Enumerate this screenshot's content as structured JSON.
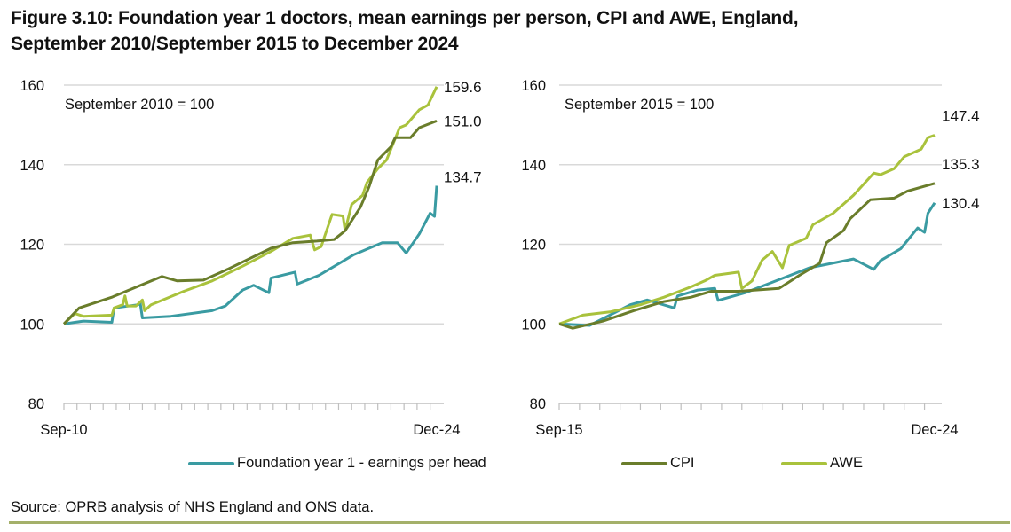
{
  "title_line1": "Figure 3.10: Foundation year 1 doctors, mean earnings per person, CPI and AWE, England,",
  "title_line2": "September 2010/September 2015 to December 2024",
  "source": "Source: OPRB analysis of NHS England and ONS data.",
  "colors": {
    "fy1": "#3a9ba2",
    "cpi": "#6a7d2b",
    "awe": "#a9c23c",
    "grid": "#d9d9d9",
    "rule": "#a4b06a"
  },
  "legend": [
    {
      "key": "fy1",
      "label": "Foundation year 1 - earnings per head"
    },
    {
      "key": "cpi",
      "label": "CPI"
    },
    {
      "key": "awe",
      "label": "AWE"
    }
  ],
  "chart_data": [
    {
      "type": "line",
      "annotation": "September 2010 = 100",
      "x_start": "2010-09",
      "x_end": "2024-12",
      "x_tick_labels": [
        "Sep-10",
        "Dec-24"
      ],
      "ylim": [
        80,
        160
      ],
      "yticks": [
        80,
        100,
        120,
        140,
        160
      ],
      "grid": true,
      "end_labels": {
        "awe": "159.6",
        "cpi": "151.0",
        "fy1": "134.7"
      },
      "series": {
        "cpi": [
          [
            "2010-09",
            100
          ],
          [
            "2011-04",
            104
          ],
          [
            "2012-07",
            106.7
          ],
          [
            "2014-06",
            111.9
          ],
          [
            "2015-01",
            110.8
          ],
          [
            "2016-01",
            111
          ],
          [
            "2016-12",
            113.7
          ],
          [
            "2018-08",
            119
          ],
          [
            "2019-06",
            120.4
          ],
          [
            "2020-05",
            120.8
          ],
          [
            "2021-01",
            121.2
          ],
          [
            "2021-06",
            123.4
          ],
          [
            "2022-01",
            129.3
          ],
          [
            "2022-05",
            134.5
          ],
          [
            "2022-09",
            141.2
          ],
          [
            "2023-03",
            144.5
          ],
          [
            "2023-05",
            146.8
          ],
          [
            "2023-12",
            146.8
          ],
          [
            "2024-04",
            149.3
          ],
          [
            "2024-12",
            151.0
          ]
        ],
        "awe": [
          [
            "2010-09",
            100
          ],
          [
            "2011-02",
            102.6
          ],
          [
            "2011-06",
            101.9
          ],
          [
            "2012-07",
            102.2
          ],
          [
            "2012-08",
            104
          ],
          [
            "2012-12",
            104.8
          ],
          [
            "2013-01",
            107
          ],
          [
            "2013-02",
            104.5
          ],
          [
            "2013-06",
            104.5
          ],
          [
            "2013-09",
            106
          ],
          [
            "2013-10",
            103.3
          ],
          [
            "2014-01",
            104.8
          ],
          [
            "2015-04",
            108.2
          ],
          [
            "2016-05",
            110.8
          ],
          [
            "2017-07",
            114.5
          ],
          [
            "2018-08",
            118.2
          ],
          [
            "2019-06",
            121.5
          ],
          [
            "2020-02",
            122.3
          ],
          [
            "2020-04",
            118.6
          ],
          [
            "2020-07",
            119.4
          ],
          [
            "2020-12",
            127.5
          ],
          [
            "2021-05",
            127.1
          ],
          [
            "2021-06",
            123.4
          ],
          [
            "2021-09",
            130
          ],
          [
            "2022-02",
            132.3
          ],
          [
            "2022-04",
            135.5
          ],
          [
            "2022-09",
            139
          ],
          [
            "2023-01",
            141.2
          ],
          [
            "2023-07",
            149.3
          ],
          [
            "2023-10",
            150
          ],
          [
            "2024-04",
            153.8
          ],
          [
            "2024-08",
            155
          ],
          [
            "2024-12",
            159.6
          ]
        ],
        "fy1": [
          [
            "2010-09",
            100
          ],
          [
            "2011-02",
            100.4
          ],
          [
            "2011-06",
            100.7
          ],
          [
            "2012-07",
            100.4
          ],
          [
            "2012-08",
            104
          ],
          [
            "2013-07",
            104.8
          ],
          [
            "2013-08",
            105.2
          ],
          [
            "2013-09",
            101.5
          ],
          [
            "2014-10",
            101.9
          ],
          [
            "2016-05",
            103.3
          ],
          [
            "2016-11",
            104.5
          ],
          [
            "2017-07",
            108.5
          ],
          [
            "2017-12",
            109.7
          ],
          [
            "2018-07",
            107.8
          ],
          [
            "2018-08",
            111.5
          ],
          [
            "2019-07",
            113
          ],
          [
            "2019-08",
            110
          ],
          [
            "2020-06",
            112.2
          ],
          [
            "2021-10",
            117.4
          ],
          [
            "2022-11",
            120.4
          ],
          [
            "2023-06",
            120.4
          ],
          [
            "2023-10",
            117.8
          ],
          [
            "2024-04",
            122.6
          ],
          [
            "2024-09",
            127.8
          ],
          [
            "2024-11",
            127
          ],
          [
            "2024-12",
            134.7
          ]
        ]
      }
    },
    {
      "type": "line",
      "annotation": "September 2015 = 100",
      "x_start": "2015-09",
      "x_end": "2024-12",
      "x_tick_labels": [
        "Sep-15",
        "Dec-24"
      ],
      "ylim": [
        80,
        160
      ],
      "yticks": [
        80,
        100,
        120,
        140,
        160
      ],
      "grid": true,
      "end_labels": {
        "awe": "147.4",
        "cpi": "135.3",
        "fy1": "130.4"
      },
      "series": {
        "awe": [
          [
            "2015-09",
            100
          ],
          [
            "2016-04",
            102.2
          ],
          [
            "2016-12",
            103
          ],
          [
            "2017-09",
            104.8
          ],
          [
            "2018-04",
            106.7
          ],
          [
            "2018-12",
            109.3
          ],
          [
            "2019-04",
            110.8
          ],
          [
            "2019-07",
            112.2
          ],
          [
            "2020-02",
            113
          ],
          [
            "2020-03",
            108.9
          ],
          [
            "2020-06",
            110.8
          ],
          [
            "2020-09",
            116
          ],
          [
            "2020-12",
            118.2
          ],
          [
            "2021-03",
            114.1
          ],
          [
            "2021-05",
            119.7
          ],
          [
            "2021-10",
            121.5
          ],
          [
            "2021-12",
            124.9
          ],
          [
            "2022-06",
            127.8
          ],
          [
            "2022-12",
            132.3
          ],
          [
            "2023-06",
            137.9
          ],
          [
            "2023-08",
            137.5
          ],
          [
            "2023-12",
            139
          ],
          [
            "2024-03",
            142
          ],
          [
            "2024-08",
            143.9
          ],
          [
            "2024-10",
            146.8
          ],
          [
            "2024-12",
            147.4
          ]
        ],
        "cpi": [
          [
            "2015-09",
            100
          ],
          [
            "2016-01",
            98.9
          ],
          [
            "2016-10",
            100.7
          ],
          [
            "2017-07",
            103.3
          ],
          [
            "2018-04",
            105.6
          ],
          [
            "2018-12",
            106.7
          ],
          [
            "2019-06",
            108.2
          ],
          [
            "2020-02",
            108.2
          ],
          [
            "2021-02",
            108.9
          ],
          [
            "2021-08",
            112.2
          ],
          [
            "2022-02",
            115.2
          ],
          [
            "2022-04",
            120.4
          ],
          [
            "2022-09",
            123.4
          ],
          [
            "2022-11",
            126.4
          ],
          [
            "2023-05",
            131.2
          ],
          [
            "2023-12",
            131.6
          ],
          [
            "2024-04",
            133.4
          ],
          [
            "2024-12",
            135.3
          ]
        ],
        "fy1": [
          [
            "2015-09",
            100
          ],
          [
            "2016-06",
            99.6
          ],
          [
            "2017-06",
            104.8
          ],
          [
            "2017-11",
            106
          ],
          [
            "2018-07",
            104
          ],
          [
            "2018-08",
            107
          ],
          [
            "2019-02",
            108.5
          ],
          [
            "2019-07",
            108.9
          ],
          [
            "2019-08",
            105.9
          ],
          [
            "2020-04",
            107.8
          ],
          [
            "2021-02",
            111.1
          ],
          [
            "2021-11",
            114.1
          ],
          [
            "2022-12",
            116.3
          ],
          [
            "2023-06",
            113.7
          ],
          [
            "2023-08",
            115.9
          ],
          [
            "2024-02",
            118.9
          ],
          [
            "2024-07",
            124.1
          ],
          [
            "2024-09",
            123
          ],
          [
            "2024-10",
            127.8
          ],
          [
            "2024-12",
            130.4
          ]
        ]
      }
    }
  ]
}
